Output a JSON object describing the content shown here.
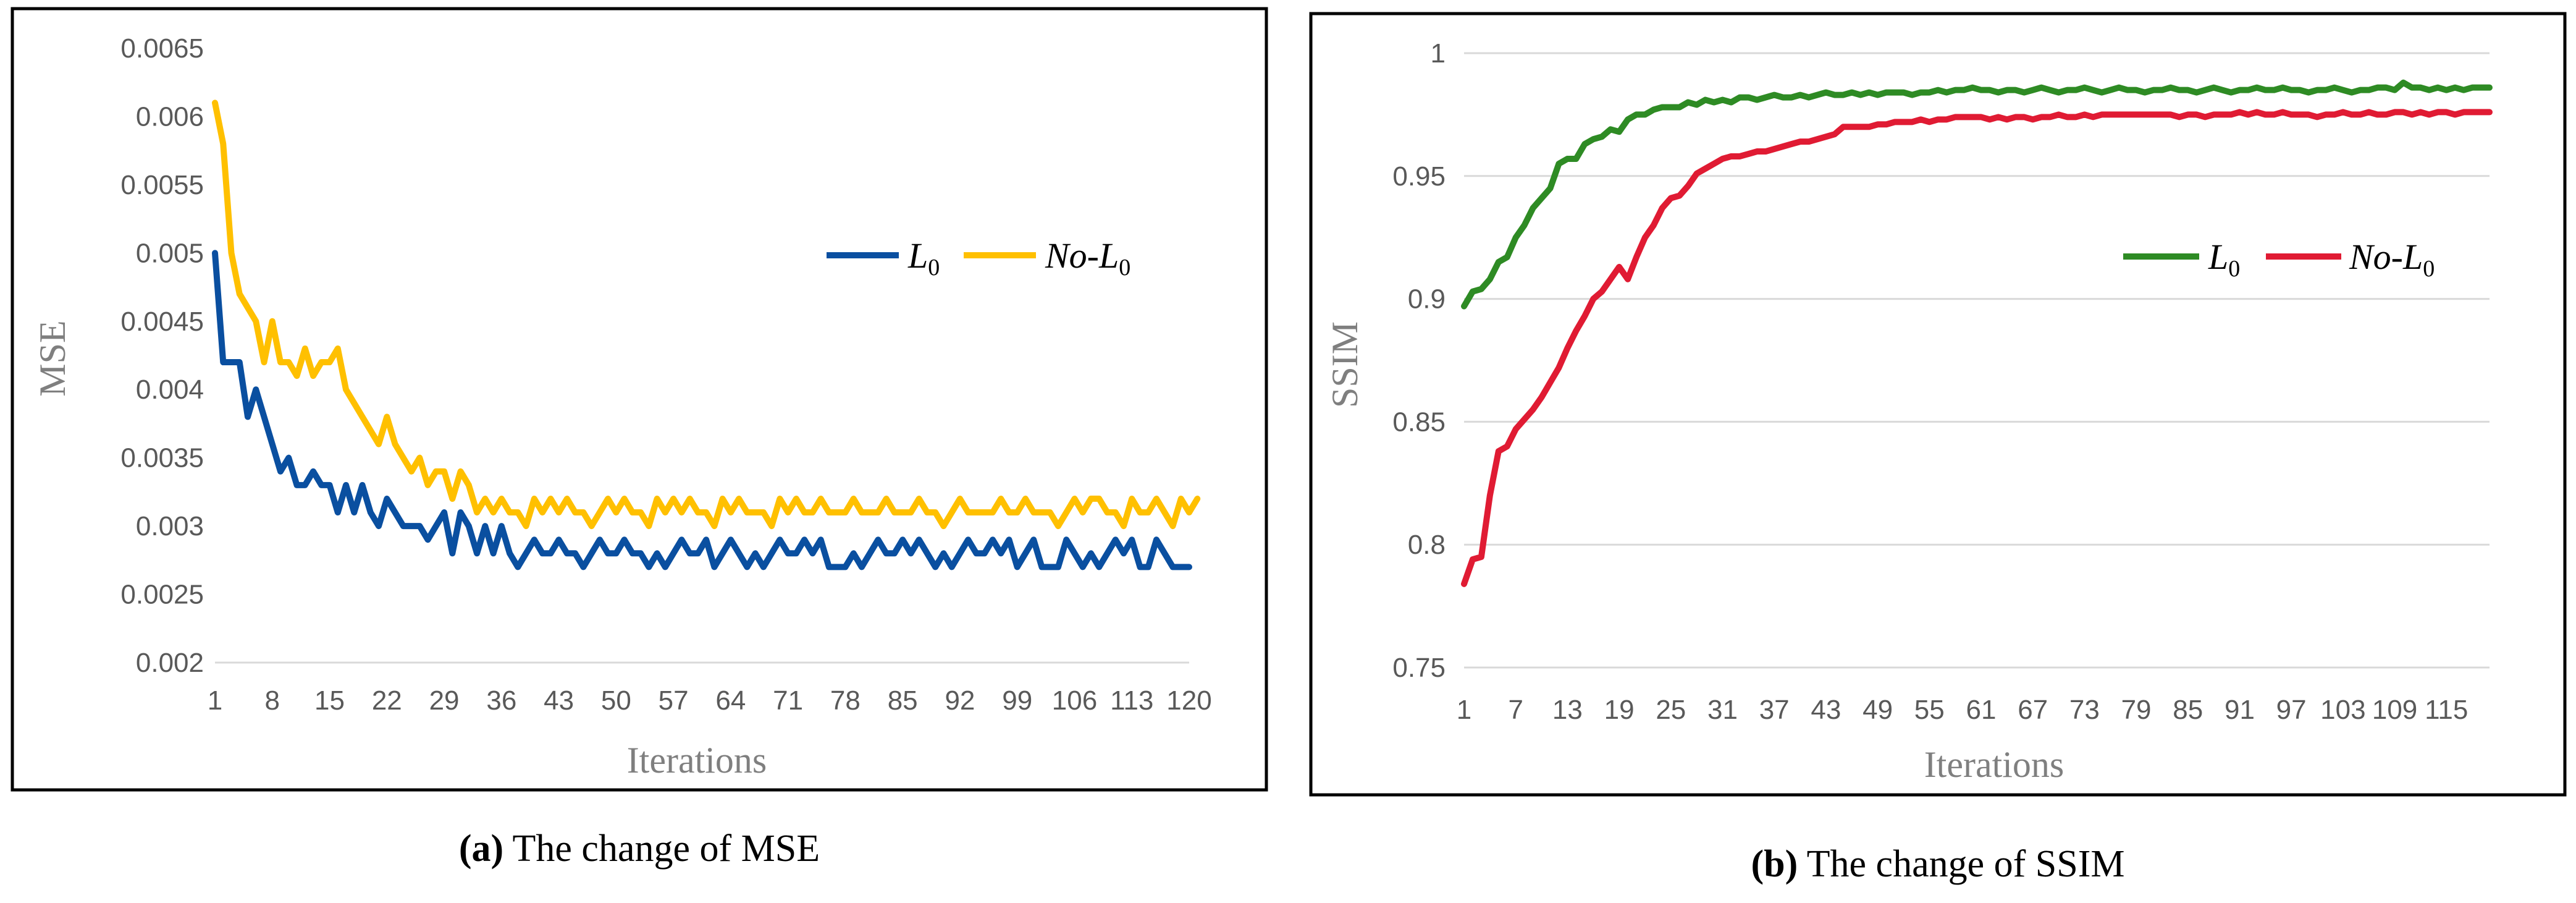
{
  "colors": {
    "mse_l0": "#0a4fa0",
    "mse_nol0": "#ffc000",
    "ssim_l0": "#2e8b24",
    "ssim_nol0": "#e01b33",
    "grid": "#d9d9d9",
    "frame": "#000000"
  },
  "chart_data": [
    {
      "type": "line",
      "caption_prefix": "(a)",
      "caption_text": " The change of MSE",
      "xlabel": "Iterations",
      "ylabel": "MSE",
      "ylim": [
        0.002,
        0.0065
      ],
      "yticks": [
        "0.002",
        "0.0025",
        "0.003",
        "0.0035",
        "0.004",
        "0.0045",
        "0.005",
        "0.0055",
        "0.006",
        "0.0065"
      ],
      "xlim": [
        1,
        120
      ],
      "xticks": [
        1,
        8,
        15,
        22,
        29,
        36,
        43,
        50,
        57,
        64,
        71,
        78,
        85,
        92,
        99,
        106,
        113,
        120
      ],
      "grid": false,
      "legend_position": "upper-right",
      "series": [
        {
          "name": "L",
          "subscript": "0",
          "color_key": "mse_l0",
          "values": [
            0.005,
            0.0042,
            0.0042,
            0.0042,
            0.0038,
            0.004,
            0.0038,
            0.0036,
            0.0034,
            0.0035,
            0.0033,
            0.0033,
            0.0034,
            0.0033,
            0.0033,
            0.0031,
            0.0033,
            0.0031,
            0.0033,
            0.0031,
            0.003,
            0.0032,
            0.0031,
            0.003,
            0.003,
            0.003,
            0.0029,
            0.003,
            0.0031,
            0.0028,
            0.0031,
            0.003,
            0.0028,
            0.003,
            0.0028,
            0.003,
            0.0028,
            0.0027,
            0.0028,
            0.0029,
            0.0028,
            0.0028,
            0.0029,
            0.0028,
            0.0028,
            0.0027,
            0.0028,
            0.0029,
            0.0028,
            0.0028,
            0.0029,
            0.0028,
            0.0028,
            0.0027,
            0.0028,
            0.0027,
            0.0028,
            0.0029,
            0.0028,
            0.0028,
            0.0029,
            0.0027,
            0.0028,
            0.0029,
            0.0028,
            0.0027,
            0.0028,
            0.0027,
            0.0028,
            0.0029,
            0.0028,
            0.0028,
            0.0029,
            0.0028,
            0.0029,
            0.0027,
            0.0027,
            0.0027,
            0.0028,
            0.0027,
            0.0028,
            0.0029,
            0.0028,
            0.0028,
            0.0029,
            0.0028,
            0.0029,
            0.0028,
            0.0027,
            0.0028,
            0.0027,
            0.0028,
            0.0029,
            0.0028,
            0.0028,
            0.0029,
            0.0028,
            0.0029,
            0.0027,
            0.0028,
            0.0029,
            0.0027,
            0.0027,
            0.0027,
            0.0029,
            0.0028,
            0.0027,
            0.0028,
            0.0027,
            0.0028,
            0.0029,
            0.0028,
            0.0029,
            0.0027,
            0.0027,
            0.0029,
            0.0028,
            0.0027,
            0.0027,
            0.0027
          ]
        },
        {
          "name": "No-L",
          "subscript": "0",
          "color_key": "mse_nol0",
          "values": [
            0.0061,
            0.0058,
            0.005,
            0.0047,
            0.0046,
            0.0045,
            0.0042,
            0.0045,
            0.0042,
            0.0042,
            0.0041,
            0.0043,
            0.0041,
            0.0042,
            0.0042,
            0.0043,
            0.004,
            0.0039,
            0.0038,
            0.0037,
            0.0036,
            0.0038,
            0.0036,
            0.0035,
            0.0034,
            0.0035,
            0.0033,
            0.0034,
            0.0034,
            0.0032,
            0.0034,
            0.0033,
            0.0031,
            0.0032,
            0.0031,
            0.0032,
            0.0031,
            0.0031,
            0.003,
            0.0032,
            0.0031,
            0.0032,
            0.0031,
            0.0032,
            0.0031,
            0.0031,
            0.003,
            0.0031,
            0.0032,
            0.0031,
            0.0032,
            0.0031,
            0.0031,
            0.003,
            0.0032,
            0.0031,
            0.0032,
            0.0031,
            0.0032,
            0.0031,
            0.0031,
            0.003,
            0.0032,
            0.0031,
            0.0032,
            0.0031,
            0.0031,
            0.0031,
            0.003,
            0.0032,
            0.0031,
            0.0032,
            0.0031,
            0.0031,
            0.0032,
            0.0031,
            0.0031,
            0.0031,
            0.0032,
            0.0031,
            0.0031,
            0.0031,
            0.0032,
            0.0031,
            0.0031,
            0.0031,
            0.0032,
            0.0031,
            0.0031,
            0.003,
            0.0031,
            0.0032,
            0.0031,
            0.0031,
            0.0031,
            0.0031,
            0.0032,
            0.0031,
            0.0031,
            0.0032,
            0.0031,
            0.0031,
            0.0031,
            0.003,
            0.0031,
            0.0032,
            0.0031,
            0.0032,
            0.0032,
            0.0031,
            0.0031,
            0.003,
            0.0032,
            0.0031,
            0.0031,
            0.0032,
            0.0031,
            0.003,
            0.0032,
            0.0031,
            0.0032
          ]
        }
      ]
    },
    {
      "type": "line",
      "caption_prefix": "(b)",
      "caption_text": " The change of SSIM",
      "xlabel": "Iterations",
      "ylabel": "SSIM",
      "ylim": [
        0.75,
        1.0
      ],
      "yticks": [
        "0.75",
        "0.8",
        "0.85",
        "0.9",
        "0.95",
        "1"
      ],
      "xlim": [
        1,
        120
      ],
      "xticks": [
        1,
        7,
        13,
        19,
        25,
        31,
        37,
        43,
        49,
        55,
        61,
        67,
        73,
        79,
        85,
        91,
        97,
        103,
        109,
        115
      ],
      "grid": true,
      "legend_position": "upper-right",
      "series": [
        {
          "name": "L",
          "subscript": "0",
          "color_key": "ssim_l0",
          "values": [
            0.897,
            0.903,
            0.904,
            0.908,
            0.915,
            0.917,
            0.925,
            0.93,
            0.937,
            0.941,
            0.945,
            0.955,
            0.957,
            0.957,
            0.963,
            0.965,
            0.966,
            0.969,
            0.968,
            0.973,
            0.975,
            0.975,
            0.977,
            0.978,
            0.978,
            0.978,
            0.98,
            0.979,
            0.981,
            0.98,
            0.981,
            0.98,
            0.982,
            0.982,
            0.981,
            0.982,
            0.983,
            0.982,
            0.982,
            0.983,
            0.982,
            0.983,
            0.984,
            0.983,
            0.983,
            0.984,
            0.983,
            0.984,
            0.983,
            0.984,
            0.984,
            0.984,
            0.983,
            0.984,
            0.984,
            0.985,
            0.984,
            0.985,
            0.985,
            0.986,
            0.985,
            0.985,
            0.984,
            0.985,
            0.985,
            0.984,
            0.985,
            0.986,
            0.985,
            0.984,
            0.985,
            0.985,
            0.986,
            0.985,
            0.984,
            0.985,
            0.986,
            0.985,
            0.985,
            0.984,
            0.985,
            0.985,
            0.986,
            0.985,
            0.985,
            0.984,
            0.985,
            0.986,
            0.985,
            0.984,
            0.985,
            0.985,
            0.986,
            0.985,
            0.985,
            0.986,
            0.985,
            0.985,
            0.984,
            0.985,
            0.985,
            0.986,
            0.985,
            0.984,
            0.985,
            0.985,
            0.986,
            0.986,
            0.985,
            0.988,
            0.986,
            0.986,
            0.985,
            0.986,
            0.985,
            0.986,
            0.985,
            0.986,
            0.986,
            0.986
          ]
        },
        {
          "name": "No-L",
          "subscript": "0",
          "color_key": "ssim_nol0",
          "values": [
            0.784,
            0.794,
            0.795,
            0.82,
            0.838,
            0.84,
            0.847,
            0.851,
            0.855,
            0.86,
            0.866,
            0.872,
            0.88,
            0.887,
            0.893,
            0.9,
            0.903,
            0.908,
            0.913,
            0.908,
            0.917,
            0.925,
            0.93,
            0.937,
            0.941,
            0.942,
            0.946,
            0.951,
            0.953,
            0.955,
            0.957,
            0.958,
            0.958,
            0.959,
            0.96,
            0.96,
            0.961,
            0.962,
            0.963,
            0.964,
            0.964,
            0.965,
            0.966,
            0.967,
            0.97,
            0.97,
            0.97,
            0.97,
            0.971,
            0.971,
            0.972,
            0.972,
            0.972,
            0.973,
            0.972,
            0.973,
            0.973,
            0.974,
            0.974,
            0.974,
            0.974,
            0.973,
            0.974,
            0.973,
            0.974,
            0.974,
            0.973,
            0.974,
            0.974,
            0.975,
            0.974,
            0.974,
            0.975,
            0.974,
            0.975,
            0.975,
            0.975,
            0.975,
            0.975,
            0.975,
            0.975,
            0.975,
            0.975,
            0.974,
            0.975,
            0.975,
            0.974,
            0.975,
            0.975,
            0.975,
            0.976,
            0.975,
            0.976,
            0.975,
            0.975,
            0.976,
            0.975,
            0.975,
            0.975,
            0.974,
            0.975,
            0.975,
            0.976,
            0.975,
            0.975,
            0.976,
            0.975,
            0.975,
            0.976,
            0.976,
            0.975,
            0.976,
            0.975,
            0.976,
            0.976,
            0.975,
            0.976,
            0.976,
            0.976,
            0.976
          ]
        }
      ]
    }
  ]
}
